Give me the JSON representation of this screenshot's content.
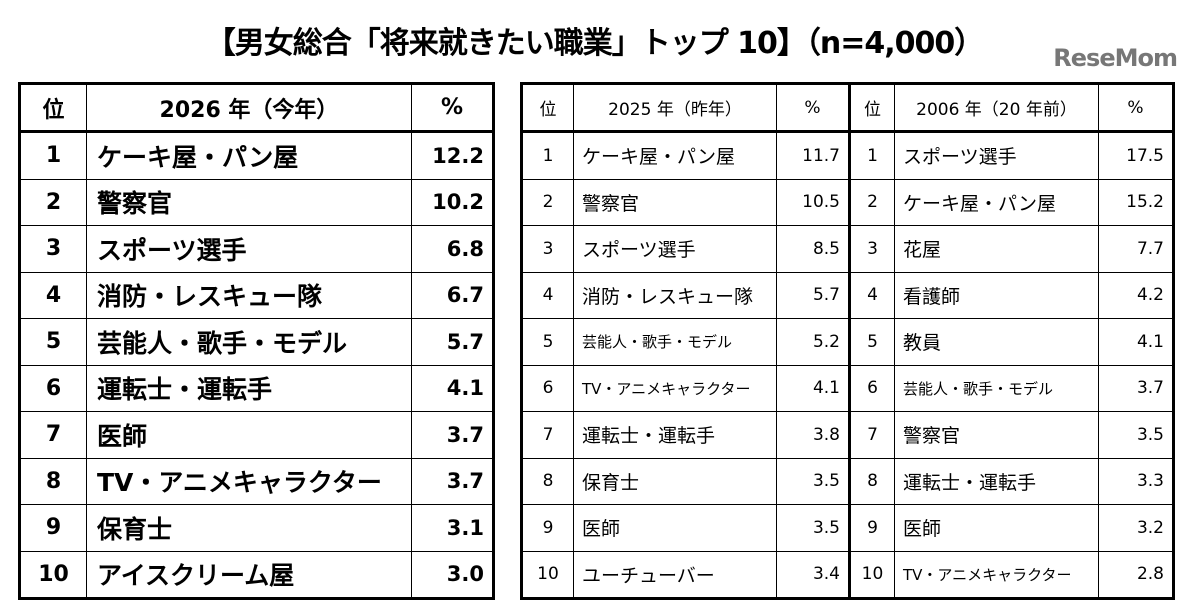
{
  "title": "【男女総合「将来就きたい職業」トップ 10】（n=4,000）",
  "table_2026": {
    "headers": {
      "rank": "位",
      "name": "2026 年（今年）",
      "pct": "%"
    },
    "rows": [
      {
        "rank": "1",
        "name": "ケーキ屋・パン屋",
        "pct": "12.2"
      },
      {
        "rank": "2",
        "name": "警察官",
        "pct": "10.2"
      },
      {
        "rank": "3",
        "name": "スポーツ選手",
        "pct": "6.8"
      },
      {
        "rank": "4",
        "name": "消防・レスキュー隊",
        "pct": "6.7"
      },
      {
        "rank": "5",
        "name": "芸能人・歌手・モデル",
        "pct": "5.7"
      },
      {
        "rank": "6",
        "name": "運転士・運転手",
        "pct": "4.1"
      },
      {
        "rank": "7",
        "name": "医師",
        "pct": "3.7"
      },
      {
        "rank": "8",
        "name": "TV・アニメキャラクター",
        "pct": "3.7"
      },
      {
        "rank": "9",
        "name": "保育士",
        "pct": "3.1"
      },
      {
        "rank": "10",
        "name": "アイスクリーム屋",
        "pct": "3.0"
      }
    ]
  },
  "table_2025": {
    "headers": {
      "rank": "位",
      "name": "2025 年（昨年）",
      "pct": "%"
    },
    "rows": [
      {
        "rank": "1",
        "name": "ケーキ屋・パン屋",
        "pct": "11.7"
      },
      {
        "rank": "2",
        "name": "警察官",
        "pct": "10.5"
      },
      {
        "rank": "3",
        "name": "スポーツ選手",
        "pct": "8.5"
      },
      {
        "rank": "4",
        "name": "消防・レスキュー隊",
        "pct": "5.7"
      },
      {
        "rank": "5",
        "name": "芸能人・歌手・モデル",
        "pct": "5.2"
      },
      {
        "rank": "6",
        "name": "TV・アニメキャラクター",
        "pct": "4.1"
      },
      {
        "rank": "7",
        "name": "運転士・運転手",
        "pct": "3.8"
      },
      {
        "rank": "8",
        "name": "保育士",
        "pct": "3.5"
      },
      {
        "rank": "9",
        "name": "医師",
        "pct": "3.5"
      },
      {
        "rank": "10",
        "name": "ユーチューバー",
        "pct": "3.4"
      }
    ]
  },
  "table_2006": {
    "headers": {
      "rank": "位",
      "name": "2006 年（20 年前）",
      "pct": "%"
    },
    "rows": [
      {
        "rank": "1",
        "name": "スポーツ選手",
        "pct": "17.5"
      },
      {
        "rank": "2",
        "name": "ケーキ屋・パン屋",
        "pct": "15.2"
      },
      {
        "rank": "3",
        "name": "花屋",
        "pct": "7.7"
      },
      {
        "rank": "4",
        "name": "看護師",
        "pct": "4.2"
      },
      {
        "rank": "5",
        "name": "教員",
        "pct": "4.1"
      },
      {
        "rank": "6",
        "name": "芸能人・歌手・モデル",
        "pct": "3.7"
      },
      {
        "rank": "7",
        "name": "警察官",
        "pct": "3.5"
      },
      {
        "rank": "8",
        "name": "運転士・運転手",
        "pct": "3.3"
      },
      {
        "rank": "9",
        "name": "医師",
        "pct": "3.2"
      },
      {
        "rank": "10",
        "name": "TV・アニメキャラクター",
        "pct": "2.8"
      }
    ]
  },
  "watermark": "ReseMom"
}
